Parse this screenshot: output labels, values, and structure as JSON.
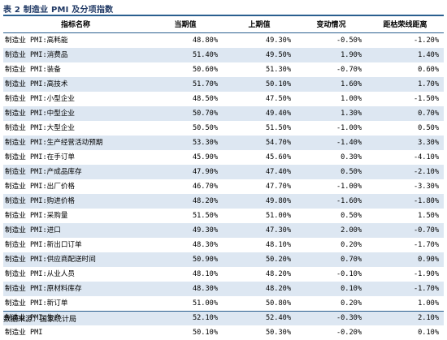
{
  "title": "表 2 制造业 PMI 及分项指数",
  "headers": [
    "指标名称",
    "当期值",
    "上期值",
    "变动情况",
    "距枯荣线距离"
  ],
  "rows": [
    {
      "name": "制造业 PMI:高耗能",
      "current": "48.80%",
      "previous": "49.30%",
      "change": "-0.50%",
      "distance": "-1.20%"
    },
    {
      "name": "制造业 PMI:消费品",
      "current": "51.40%",
      "previous": "49.50%",
      "change": "1.90%",
      "distance": "1.40%"
    },
    {
      "name": "制造业 PMI:装备",
      "current": "50.60%",
      "previous": "51.30%",
      "change": "-0.70%",
      "distance": "0.60%"
    },
    {
      "name": "制造业 PMI:高技术",
      "current": "51.70%",
      "previous": "50.10%",
      "change": "1.60%",
      "distance": "1.70%"
    },
    {
      "name": "制造业 PMI:小型企业",
      "current": "48.50%",
      "previous": "47.50%",
      "change": "1.00%",
      "distance": "-1.50%"
    },
    {
      "name": "制造业 PMI:中型企业",
      "current": "50.70%",
      "previous": "49.40%",
      "change": "1.30%",
      "distance": "0.70%"
    },
    {
      "name": "制造业 PMI:大型企业",
      "current": "50.50%",
      "previous": "51.50%",
      "change": "-1.00%",
      "distance": "0.50%"
    },
    {
      "name": "制造业 PMI:生产经营活动预期",
      "current": "53.30%",
      "previous": "54.70%",
      "change": "-1.40%",
      "distance": "3.30%"
    },
    {
      "name": "制造业 PMI:在手订单",
      "current": "45.90%",
      "previous": "45.60%",
      "change": "0.30%",
      "distance": "-4.10%"
    },
    {
      "name": "制造业 PMI:产成品库存",
      "current": "47.90%",
      "previous": "47.40%",
      "change": "0.50%",
      "distance": "-2.10%"
    },
    {
      "name": "制造业 PMI:出厂价格",
      "current": "46.70%",
      "previous": "47.70%",
      "change": "-1.00%",
      "distance": "-3.30%"
    },
    {
      "name": "制造业 PMI:购进价格",
      "current": "48.20%",
      "previous": "49.80%",
      "change": "-1.60%",
      "distance": "-1.80%"
    },
    {
      "name": "制造业 PMI:采购量",
      "current": "51.50%",
      "previous": "51.00%",
      "change": "0.50%",
      "distance": "1.50%"
    },
    {
      "name": "制造业 PMI:进口",
      "current": "49.30%",
      "previous": "47.30%",
      "change": "2.00%",
      "distance": "-0.70%"
    },
    {
      "name": "制造业 PMI:新出口订单",
      "current": "48.30%",
      "previous": "48.10%",
      "change": "0.20%",
      "distance": "-1.70%"
    },
    {
      "name": "制造业 PMI:供应商配送时间",
      "current": "50.90%",
      "previous": "50.20%",
      "change": "0.70%",
      "distance": "0.90%"
    },
    {
      "name": "制造业 PMI:从业人员",
      "current": "48.10%",
      "previous": "48.20%",
      "change": "-0.10%",
      "distance": "-1.90%"
    },
    {
      "name": "制造业 PMI:原材料库存",
      "current": "48.30%",
      "previous": "48.20%",
      "change": "0.10%",
      "distance": "-1.70%"
    },
    {
      "name": "制造业 PMI:新订单",
      "current": "51.00%",
      "previous": "50.80%",
      "change": "0.20%",
      "distance": "1.00%"
    },
    {
      "name": "制造业 PMI:生产",
      "current": "52.10%",
      "previous": "52.40%",
      "change": "-0.30%",
      "distance": "2.10%"
    },
    {
      "name": "制造业 PMI",
      "current": "50.10%",
      "previous": "50.30%",
      "change": "-0.20%",
      "distance": "0.10%"
    }
  ],
  "source": "数据来源：国家统计局",
  "colors": {
    "header_rule": "#2a5f8f",
    "title": "#1f3864",
    "row_band": "#dde7f2"
  }
}
